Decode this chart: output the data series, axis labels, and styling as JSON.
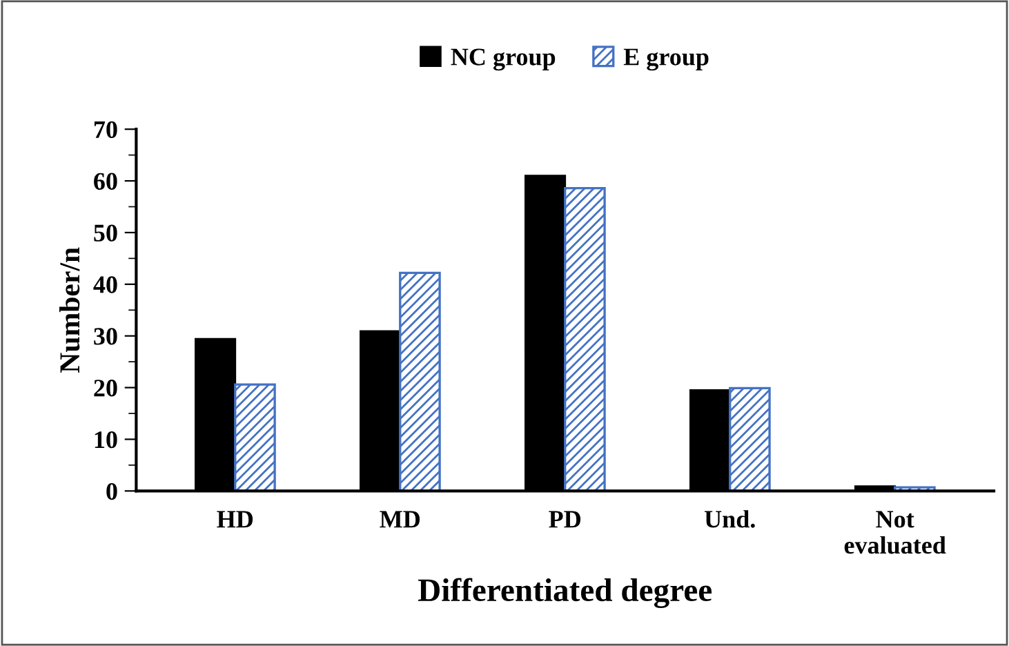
{
  "chart_data": {
    "type": "bar",
    "xlabel": "Differentiated degree",
    "ylabel": "Number/n",
    "categories": [
      "HD",
      "MD",
      "PD",
      "Und.",
      "Not\nevaluated"
    ],
    "series": [
      {
        "name": "NC group",
        "color": "#000000",
        "values": [
          29.4,
          30.9,
          61.0,
          19.5,
          0.9
        ]
      },
      {
        "name": "E group",
        "color": "#4472c4",
        "values": [
          20.6,
          42.2,
          58.6,
          19.9,
          0.7
        ]
      }
    ],
    "ylim": [
      0,
      70
    ],
    "yticks": [
      0,
      10,
      20,
      30,
      40,
      50,
      60,
      70
    ],
    "grid": false,
    "legend": "top"
  }
}
